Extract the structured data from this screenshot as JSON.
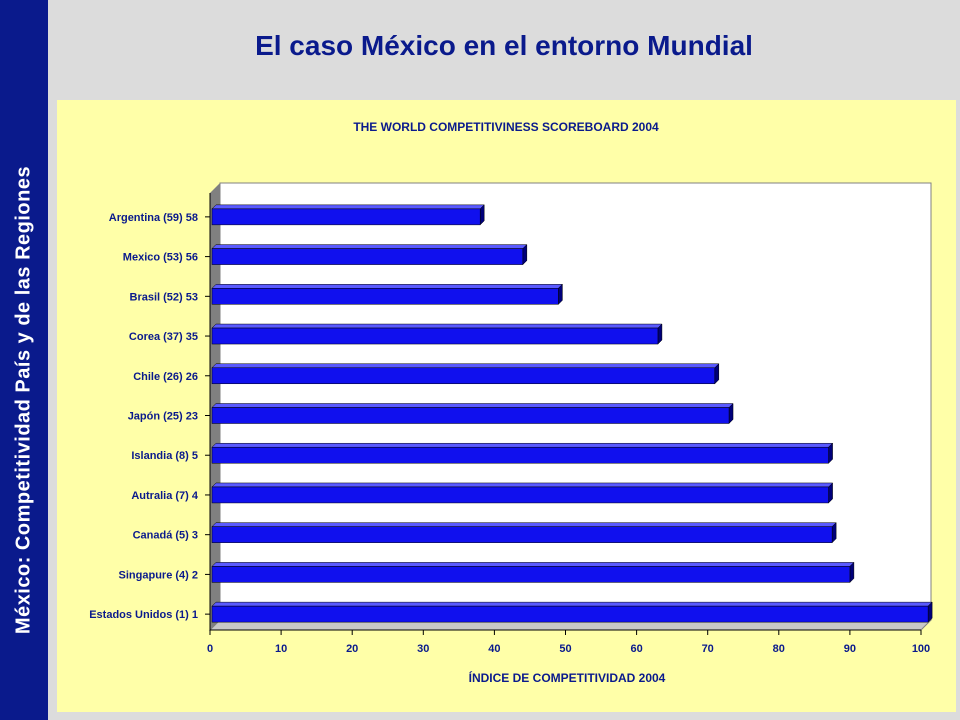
{
  "slide": {
    "title": "El caso México en el entorno Mundial",
    "sidebar_text": "México: Competitividad  País y de las  Regiones"
  },
  "colors": {
    "sidebar": "#0a1a8c",
    "title": "#0a1a8c",
    "panel": "#ffffa8",
    "bar_front": "#1010ee",
    "bar_top": "#5a5aff",
    "bar_side": "#00007a"
  },
  "chart_data": {
    "type": "bar",
    "orientation": "horizontal",
    "title": "THE WORLD COMPETITIVINESS SCOREBOARD 2004",
    "xlabel": "ÍNDICE DE COMPETITIVIDAD 2004",
    "ylabel": "",
    "xlim": [
      0,
      100
    ],
    "xticks": [
      0,
      10,
      20,
      30,
      40,
      50,
      60,
      70,
      80,
      90,
      100
    ],
    "grid": false,
    "legend": "none",
    "categories": [
      "Argentina (59) 58",
      "Mexico (53) 56",
      "Brasil (52) 53",
      "Corea (37) 35",
      "Chile (26) 26",
      "Japón (25) 23",
      "Islandia (8) 5",
      "Autralia (7) 4",
      "Canadá (5) 3",
      "Singapure (4) 2",
      "Estados Unidos (1) 1"
    ],
    "values": [
      38,
      44,
      49,
      63,
      71,
      73,
      87,
      87,
      87.5,
      90,
      101
    ]
  }
}
